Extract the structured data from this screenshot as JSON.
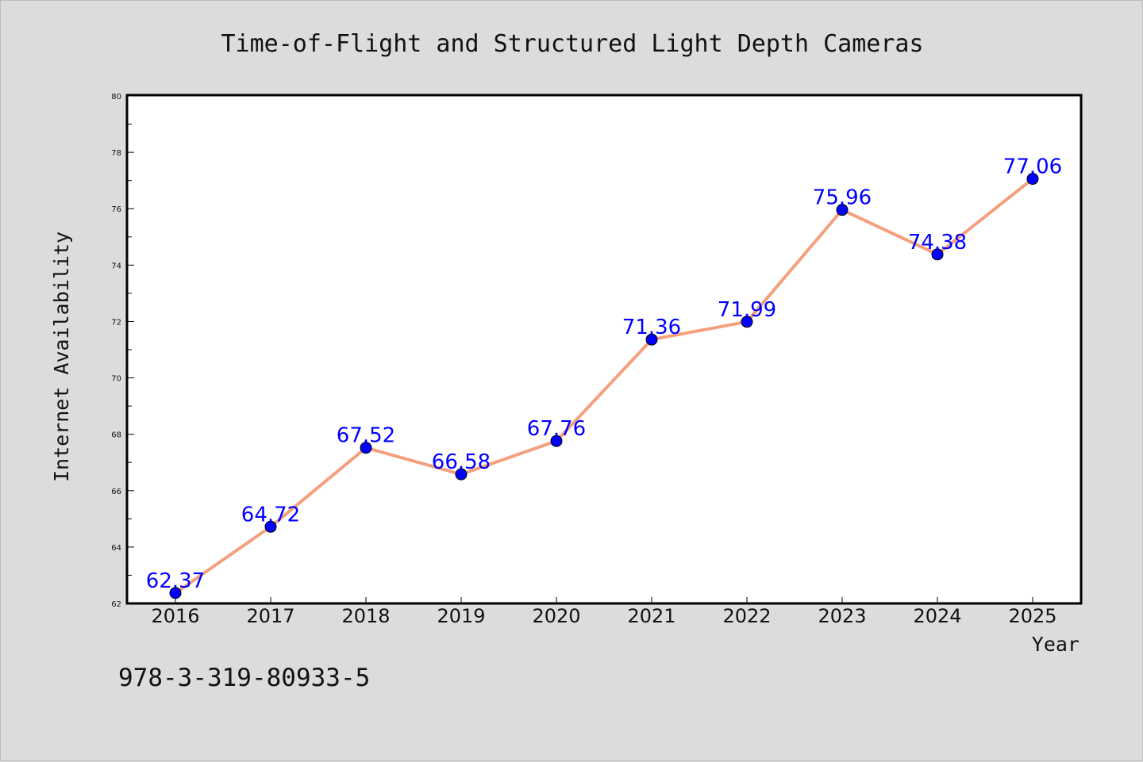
{
  "chart_data": {
    "type": "line",
    "title": "Time-of-Flight and Structured Light Depth Cameras",
    "xlabel": "Year",
    "ylabel": "Internet Availability",
    "categories": [
      "2016",
      "2017",
      "2018",
      "2019",
      "2020",
      "2021",
      "2022",
      "2023",
      "2024",
      "2025"
    ],
    "series": [
      {
        "values": [
          62.37,
          64.72,
          67.52,
          66.58,
          67.76,
          71.36,
          71.99,
          75.96,
          74.38,
          77.06
        ],
        "data_labels": [
          "62.37",
          "64.72",
          "67.52",
          "66.58",
          "67.76",
          "71.36",
          "71.99",
          "75.96",
          "74.38",
          "77.06"
        ],
        "line_color": "#f4a07e",
        "marker_color": "#0000ff"
      }
    ],
    "ylim": [
      62,
      80
    ],
    "yticks": [
      "62",
      "64",
      "66",
      "68",
      "70",
      "72",
      "74",
      "76",
      "78",
      "80"
    ],
    "grid": false,
    "legend": "none"
  },
  "footnote": "978-3-319-80933-5",
  "colors": {
    "background": "#dcdcdc",
    "plot_area": "#ffffff",
    "line": "#f4a07e",
    "marker": "#0000ff",
    "data_label": "#0000ff"
  }
}
